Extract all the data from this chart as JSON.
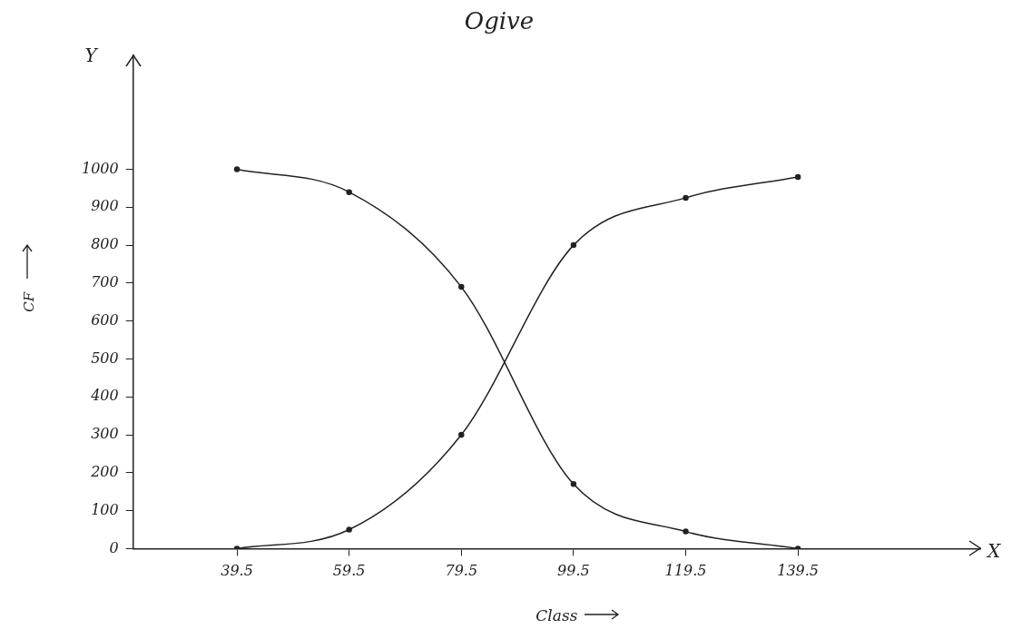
{
  "chart_data": {
    "type": "line",
    "title": "Ogive",
    "xlabel": "Class",
    "ylabel": "CF",
    "annotations": [
      "Y",
      "X"
    ],
    "x": [
      39.5,
      59.5,
      79.5,
      99.5,
      119.5,
      139.5
    ],
    "series": [
      {
        "color": "#222222",
        "values": [
          0,
          50,
          300,
          800,
          925,
          980
        ]
      },
      {
        "color": "#222222",
        "values": [
          1000,
          940,
          690,
          170,
          45,
          0
        ]
      }
    ],
    "xlim": [
      21,
      172
    ],
    "ylim": [
      0,
      1300
    ],
    "xticks": [
      39.5,
      59.5,
      79.5,
      99.5,
      119.5,
      139.5
    ],
    "yticks": [
      0,
      100,
      200,
      300,
      400,
      500,
      600,
      700,
      800,
      900,
      1000
    ],
    "grid": false,
    "legend": false,
    "marker": "circle",
    "line_style": "solid"
  }
}
